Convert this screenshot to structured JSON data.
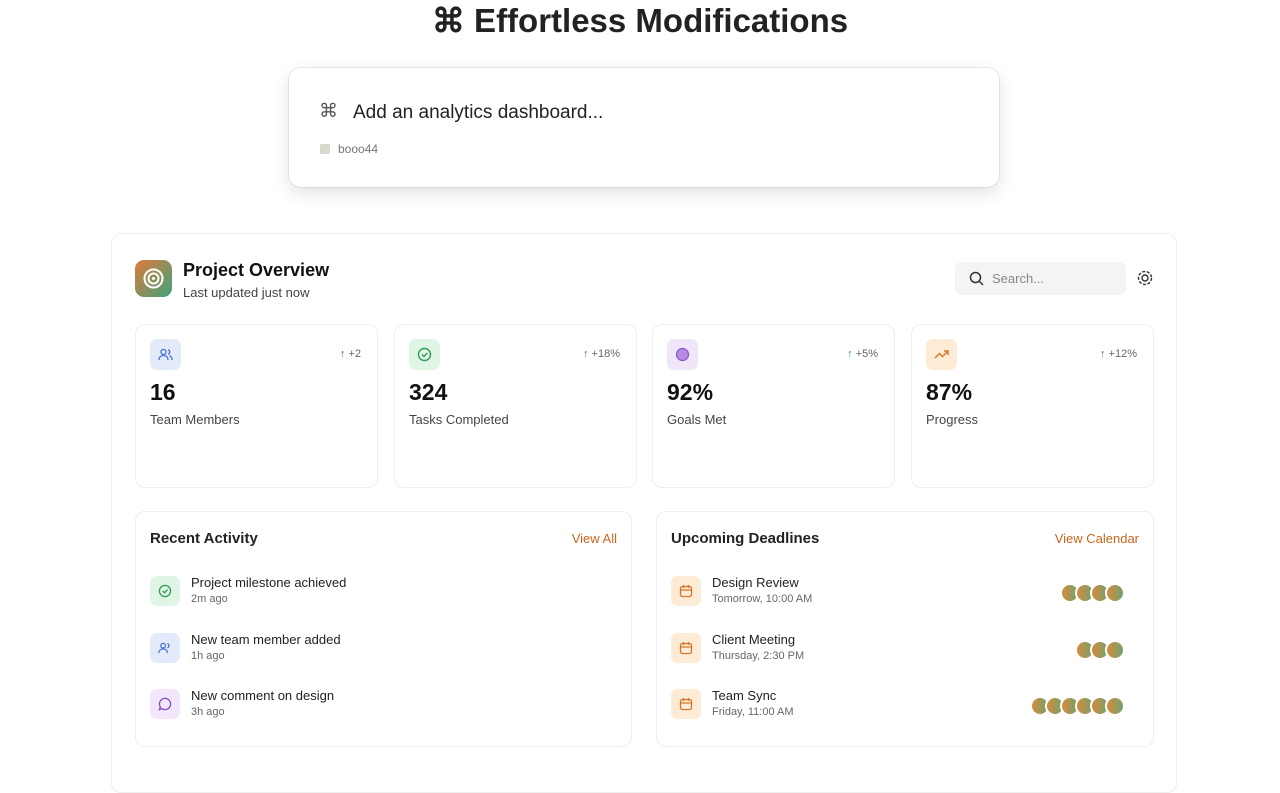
{
  "header": {
    "title": "⌘ Effortless Modifications"
  },
  "prompt": {
    "icon": "⌘",
    "text": "Add an analytics dashboard...",
    "tag": "booo44"
  },
  "dashboard": {
    "title": "Project Overview",
    "subtitle": "Last updated just now",
    "search_placeholder": "Search...",
    "stats": [
      {
        "value": "16",
        "label": "Team Members",
        "change": "+2"
      },
      {
        "value": "324",
        "label": "Tasks Completed",
        "change": "+18%"
      },
      {
        "value": "92%",
        "label": "Goals Met",
        "change": "+5%"
      },
      {
        "value": "87%",
        "label": "Progress",
        "change": "+12%"
      }
    ],
    "recent_activity": {
      "title": "Recent Activity",
      "link": "View All",
      "items": [
        {
          "title": "Project milestone achieved",
          "time": "2m ago"
        },
        {
          "title": "New team member added",
          "time": "1h ago"
        },
        {
          "title": "New comment on design",
          "time": "3h ago"
        }
      ]
    },
    "upcoming_deadlines": {
      "title": "Upcoming Deadlines",
      "link": "View Calendar",
      "items": [
        {
          "title": "Design Review",
          "time": "Tomorrow, 10:00 AM"
        },
        {
          "title": "Client Meeting",
          "time": "Thursday, 2:30 PM"
        },
        {
          "title": "Team Sync",
          "time": "Friday, 11:00 AM"
        }
      ]
    }
  }
}
